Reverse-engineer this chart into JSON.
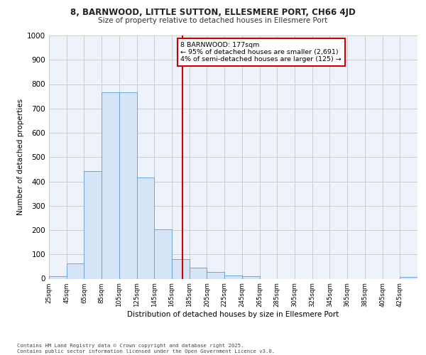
{
  "title1": "8, BARNWOOD, LITTLE SUTTON, ELLESMERE PORT, CH66 4JD",
  "title2": "Size of property relative to detached houses in Ellesmere Port",
  "xlabel": "Distribution of detached houses by size in Ellesmere Port",
  "ylabel": "Number of detached properties",
  "bin_labels": [
    "25sqm",
    "45sqm",
    "65sqm",
    "85sqm",
    "105sqm",
    "125sqm",
    "145sqm",
    "165sqm",
    "185sqm",
    "205sqm",
    "225sqm",
    "245sqm",
    "265sqm",
    "285sqm",
    "305sqm",
    "325sqm",
    "345sqm",
    "365sqm",
    "385sqm",
    "405sqm",
    "425sqm"
  ],
  "bin_edges": [
    25,
    45,
    65,
    85,
    105,
    125,
    145,
    165,
    185,
    205,
    225,
    245,
    265,
    285,
    305,
    325,
    345,
    365,
    385,
    405,
    425,
    445
  ],
  "bar_heights": [
    10,
    62,
    443,
    766,
    766,
    415,
    204,
    80,
    46,
    28,
    12,
    10,
    0,
    0,
    0,
    0,
    0,
    0,
    0,
    0,
    8
  ],
  "bar_fill": "#d6e4f7",
  "bar_edge": "#5b9bd5",
  "property_size": 177,
  "vline_color": "#cc0000",
  "annotation_text": "8 BARNWOOD: 177sqm\n← 95% of detached houses are smaller (2,691)\n4% of semi-detached houses are larger (125) →",
  "annotation_box_edgecolor": "#cc0000",
  "annotation_box_facecolor": "#ffffff",
  "ylim": [
    0,
    1000
  ],
  "yticks": [
    0,
    100,
    200,
    300,
    400,
    500,
    600,
    700,
    800,
    900,
    1000
  ],
  "grid_color": "#cccccc",
  "bg_color": "#eef2fa",
  "footer_text": "Contains HM Land Registry data © Crown copyright and database right 2025.\nContains public sector information licensed under the Open Government Licence v3.0."
}
